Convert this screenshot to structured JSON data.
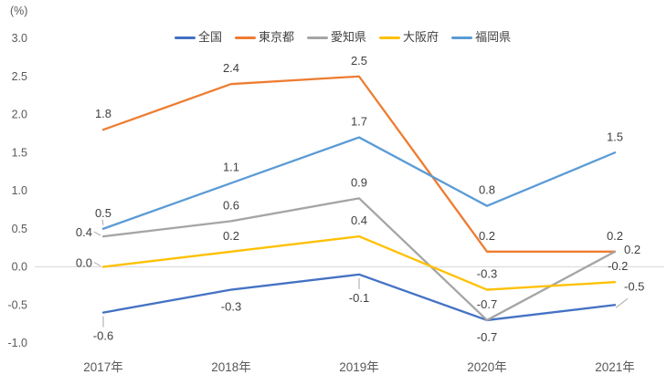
{
  "chart_data": {
    "type": "line",
    "unit_label": "(%)",
    "categories": [
      "2017年",
      "2018年",
      "2019年",
      "2020年",
      "2021年"
    ],
    "series": [
      {
        "name": "全国",
        "color": "#4472C4",
        "values": [
          -0.6,
          -0.3,
          -0.1,
          -0.7,
          -0.5
        ]
      },
      {
        "name": "東京都",
        "color": "#ED7D31",
        "values": [
          1.8,
          2.4,
          2.5,
          0.2,
          0.2
        ]
      },
      {
        "name": "愛知県",
        "color": "#A5A5A5",
        "values": [
          0.4,
          0.6,
          0.9,
          -0.7,
          0.2
        ]
      },
      {
        "name": "大阪府",
        "color": "#FFC000",
        "values": [
          0.0,
          0.2,
          0.4,
          -0.3,
          -0.2
        ]
      },
      {
        "name": "福岡県",
        "color": "#5B9BD5",
        "values": [
          0.5,
          1.1,
          1.7,
          0.8,
          1.5
        ]
      }
    ],
    "y_axis": {
      "ticks": [
        3.0,
        2.5,
        2.0,
        1.5,
        1.0,
        0.5,
        0.0,
        -0.5,
        -1.0
      ],
      "min": -1.0,
      "max": 3.0
    },
    "grid": "zero-line-only",
    "legend_position": "top-center",
    "data_labels": "one-decimal",
    "colors": {
      "axis_text": "#595959",
      "label_text": "#404040",
      "gridline": "#D9D9D9",
      "leader": "#A6A6A6",
      "background": "#FFFFFF"
    }
  }
}
